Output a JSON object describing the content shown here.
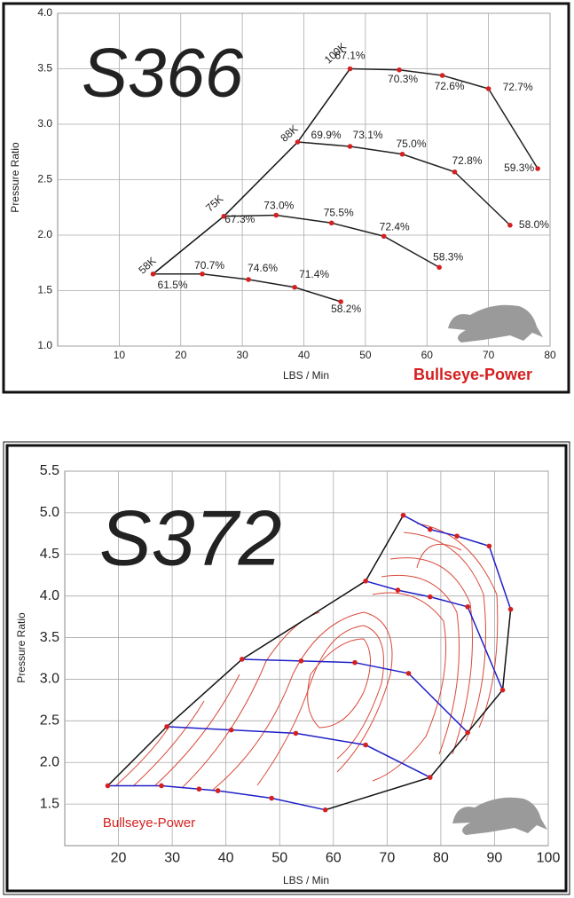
{
  "chart_data": [
    {
      "type": "compressor-map",
      "title": "S366",
      "xlabel": "LBS / Min",
      "ylabel": "Pressure Ratio",
      "brand": "Bullseye-Power",
      "xlim": [
        0,
        80
      ],
      "xticks": [
        10,
        20,
        30,
        40,
        50,
        60,
        70,
        80
      ],
      "ylim": [
        1.0,
        4.0
      ],
      "yticks": [
        {
          "value": 1.0,
          "label": "1.0"
        },
        1.5,
        {
          "value": 2.0,
          "label": "2.0"
        },
        2.5,
        {
          "value": 3.0,
          "label": "3.0"
        },
        3.5,
        {
          "value": 4.0,
          "label": "4.0"
        }
      ],
      "grid": true,
      "line_color": "#222222",
      "marker_color": "#d42020",
      "surge_line": true,
      "choke_line": false,
      "series": [
        {
          "name": "58K",
          "x": [
            15.5,
            23.5,
            31,
            38.5,
            46
          ],
          "values": [
            1.65,
            1.65,
            1.6,
            1.53,
            1.4
          ],
          "efficiency_labels": [
            "61.5%",
            "70.7%",
            "74.6%",
            "71.4%",
            "58.2%"
          ]
        },
        {
          "name": "75K",
          "x": [
            27,
            35.5,
            44.5,
            53,
            62
          ],
          "values": [
            2.17,
            2.18,
            2.11,
            1.99,
            1.71
          ],
          "efficiency_labels": [
            "67.3%",
            "73.0%",
            "75.5%",
            "72.4%",
            "58.3%"
          ]
        },
        {
          "name": "88K",
          "x": [
            39,
            47.5,
            56,
            64.5,
            73.5
          ],
          "values": [
            2.84,
            2.8,
            2.73,
            2.57,
            2.09
          ],
          "efficiency_labels": [
            "69.9%",
            "73.1%",
            "75.0%",
            "72.8%",
            "58.0%"
          ]
        },
        {
          "name": "100K",
          "x": [
            47.5,
            55.5,
            62.5,
            70,
            78
          ],
          "values": [
            3.5,
            3.49,
            3.44,
            3.32,
            2.6
          ],
          "efficiency_labels": [
            "67.1%",
            "70.3%",
            "72.6%",
            "72.7%",
            "59.3%"
          ]
        }
      ]
    },
    {
      "type": "compressor-map",
      "title": "S372",
      "xlabel": "LBS / Min",
      "ylabel": "Pressure Ratio",
      "brand": "Bullseye-Power",
      "xlim": [
        10,
        100
      ],
      "xticks": [
        20,
        30,
        40,
        50,
        60,
        70,
        80,
        90,
        100
      ],
      "ylim": [
        1.0,
        5.5
      ],
      "yticks": [
        1.5,
        {
          "value": 2.0,
          "label": "2.0"
        },
        2.5,
        {
          "value": 3.0,
          "label": "3.0"
        },
        3.5,
        {
          "value": 4.0,
          "label": "4.0"
        },
        4.5,
        {
          "value": 5.0,
          "label": "5.0"
        },
        5.5
      ],
      "grid": true,
      "line_color": "#2020c8",
      "marker_color": "#d42020",
      "surge_line": true,
      "choke_line": true,
      "series": [
        {
          "x": [
            18,
            28,
            35,
            38.5,
            48.5,
            58.5
          ],
          "values": [
            1.72,
            1.72,
            1.68,
            1.66,
            1.57,
            1.43
          ]
        },
        {
          "x": [
            29,
            41,
            53,
            66,
            78
          ],
          "values": [
            2.43,
            2.39,
            2.35,
            2.21,
            1.82
          ]
        },
        {
          "x": [
            43,
            54,
            64,
            74,
            85
          ],
          "values": [
            3.24,
            3.22,
            3.2,
            3.07,
            2.36
          ]
        },
        {
          "x": [
            66,
            72,
            78,
            85,
            91.5
          ],
          "values": [
            4.18,
            4.07,
            3.99,
            3.87,
            2.87
          ]
        },
        {
          "x": [
            73,
            78,
            83,
            89,
            93
          ],
          "values": [
            4.97,
            4.8,
            4.72,
            4.6,
            3.84
          ]
        }
      ]
    }
  ]
}
